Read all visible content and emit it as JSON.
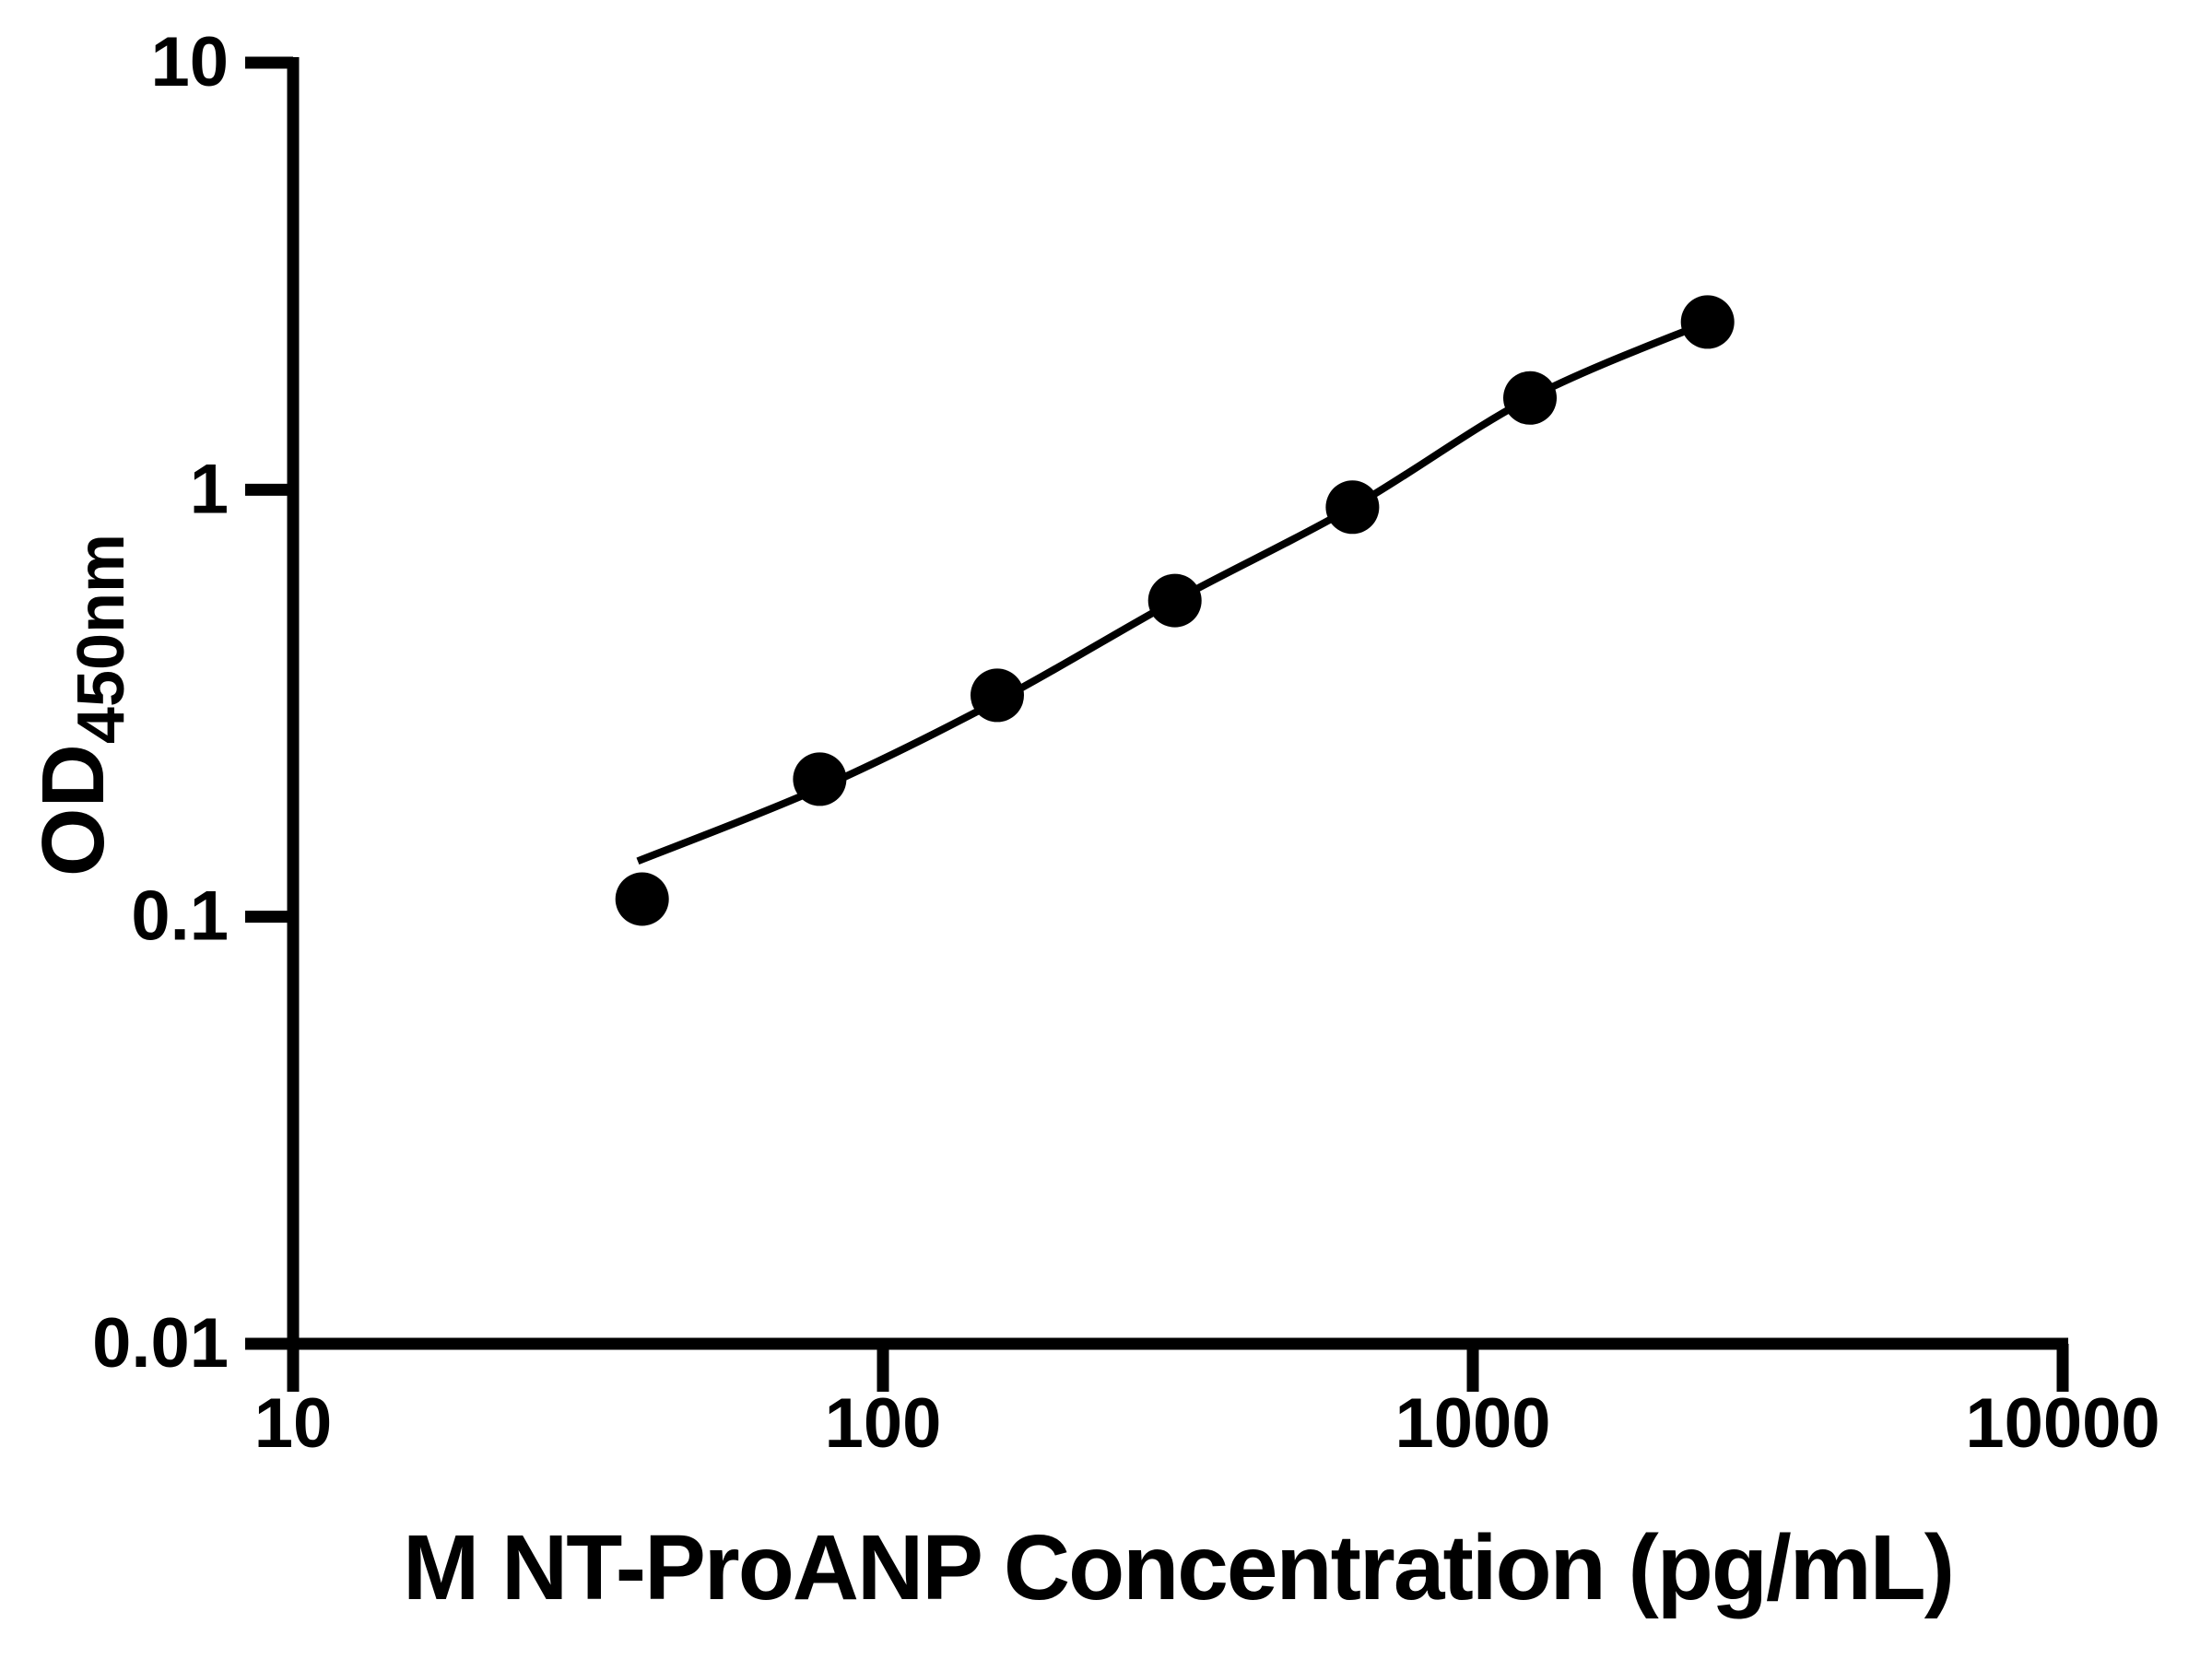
{
  "figure": {
    "background": "#ffffff",
    "axis_color": "#000000",
    "marker_color": "#000000",
    "curve_color": "#000000"
  },
  "chart_data": {
    "type": "scatter",
    "title": "",
    "xlabel": "M NT-ProANP Concentration (pg/mL)",
    "ylabel_main": "OD",
    "ylabel_sub": "450nm",
    "x_scale": "log",
    "y_scale": "log",
    "xlim": [
      10,
      10000
    ],
    "ylim": [
      0.01,
      10
    ],
    "grid": false,
    "legend": null,
    "x_ticks": [
      {
        "value": 10,
        "label": "10"
      },
      {
        "value": 100,
        "label": "100"
      },
      {
        "value": 1000,
        "label": "1000"
      },
      {
        "value": 10000,
        "label": "10000"
      }
    ],
    "y_ticks": [
      {
        "value": 10,
        "label": "10"
      },
      {
        "value": 1,
        "label": "1"
      },
      {
        "value": 0.1,
        "label": "0.1"
      },
      {
        "value": 0.01,
        "label": "0.01"
      }
    ],
    "series": [
      {
        "name": "standard_points",
        "type": "scatter",
        "marker": "circle",
        "marker_color": "#000000",
        "points": [
          {
            "x": 39.06,
            "y": 0.11
          },
          {
            "x": 78.13,
            "y": 0.21
          },
          {
            "x": 156.25,
            "y": 0.33
          },
          {
            "x": 312.5,
            "y": 0.55
          },
          {
            "x": 625,
            "y": 0.91
          },
          {
            "x": 1250,
            "y": 1.64
          },
          {
            "x": 2500,
            "y": 2.47
          }
        ]
      },
      {
        "name": "fit_curve",
        "type": "line",
        "line_color": "#000000",
        "points": [
          {
            "x": 38.4,
            "y": 0.135
          },
          {
            "x": 78.13,
            "y": 0.2
          },
          {
            "x": 156.25,
            "y": 0.32
          },
          {
            "x": 312.5,
            "y": 0.55
          },
          {
            "x": 625,
            "y": 0.91
          },
          {
            "x": 1250,
            "y": 1.64
          },
          {
            "x": 2500,
            "y": 2.47
          }
        ]
      }
    ]
  }
}
